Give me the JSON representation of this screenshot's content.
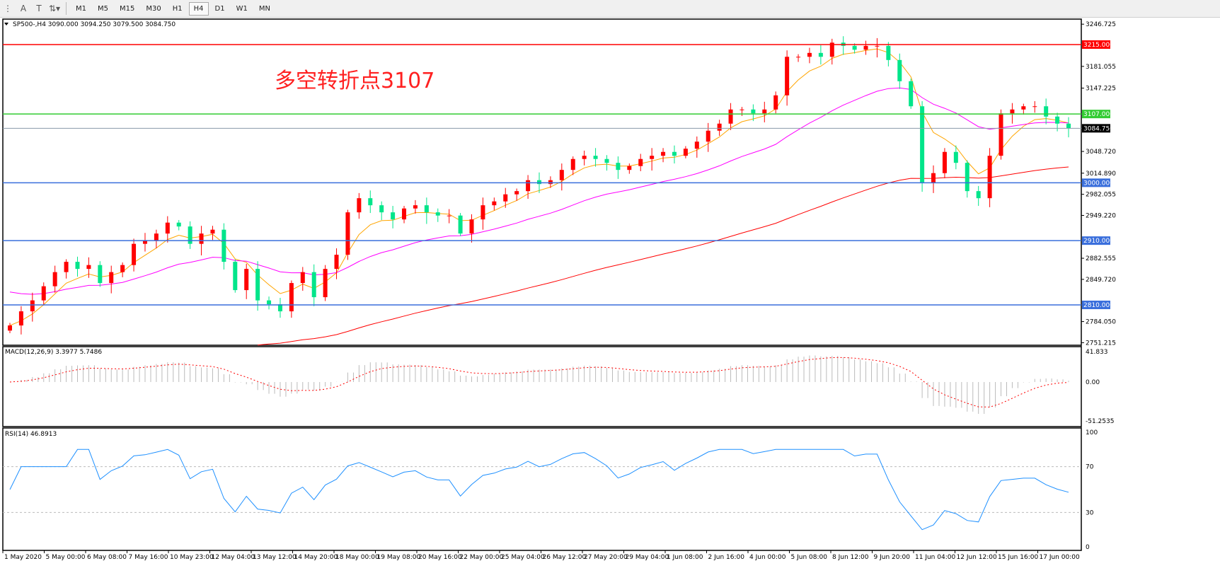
{
  "toolbar": {
    "icons": [
      "period-separator-icon",
      "text-icon",
      "text-label-icon",
      "arrows-icon"
    ],
    "timeframes": [
      "M1",
      "M5",
      "M15",
      "M30",
      "H1",
      "H4",
      "D1",
      "W1",
      "MN"
    ],
    "active_timeframe": "H4"
  },
  "chart": {
    "header": "SP500-,H4  3090.000 3094.250 3079.500 3084.750",
    "annotation": "多空转折点3107",
    "price_axis": [
      "3246.725",
      "3181.055",
      "3147.225",
      "3048.720",
      "3014.890",
      "2982.055",
      "2949.220",
      "2882.555",
      "2849.720",
      "2784.050",
      "2751.215"
    ],
    "levels": [
      {
        "label": "3215.000",
        "price": 3215,
        "color": "#ff0000"
      },
      {
        "label": "3107.000",
        "price": 3107,
        "color": "#33cc33"
      },
      {
        "label": "3000.000",
        "price": 3000,
        "color": "#3a6fdc"
      },
      {
        "label": "2910.000",
        "price": 2910,
        "color": "#3a6fdc"
      },
      {
        "label": "2810.000",
        "price": 2810,
        "color": "#3a6fdc"
      }
    ],
    "current_price": {
      "label": "3084.750",
      "price": 3084.75
    },
    "colors": {
      "bull": "#ff0000",
      "bear": "#00e58a",
      "ma_fast": "#ffa500",
      "ma_mid": "#ff00ff",
      "ma_slow": "#ff0000"
    },
    "closes": [
      2778,
      2800,
      2817,
      2839,
      2861,
      2877,
      2866,
      2872,
      2844,
      2861,
      2872,
      2905,
      2910,
      2921,
      2938,
      2932,
      2905,
      2921,
      2927,
      2877,
      2833,
      2866,
      2817,
      2811,
      2800,
      2844,
      2861,
      2822,
      2866,
      2888,
      2954,
      2976,
      2965,
      2954,
      2943,
      2960,
      2965,
      2954,
      2949,
      2949,
      2921,
      2943,
      2965,
      2971,
      2982,
      2987,
      3004,
      2998,
      3004,
      3020,
      3037,
      3042,
      3037,
      3031,
      3020,
      3026,
      3037,
      3042,
      3048,
      3042,
      3053,
      3064,
      3081,
      3092,
      3114,
      3114,
      3108,
      3114,
      3136,
      3196,
      3196,
      3202,
      3196,
      3218,
      3213,
      3207,
      3213,
      3213,
      3191,
      3158,
      3119,
      3000,
      3015,
      3048,
      3031,
      2987,
      2976,
      3042,
      3108,
      3114,
      3119,
      3119,
      3103,
      3092,
      3084.75
    ]
  },
  "macd": {
    "header": "MACD(12,26,9) 3.3977 5.7486",
    "axis": [
      "41.833",
      "0.00",
      "-51.2535"
    ]
  },
  "rsi": {
    "header": "RSI(14) 46.8913",
    "axis": [
      "100",
      "70",
      "30",
      "0"
    ]
  },
  "time_axis": [
    "1 May 2020",
    "5 May 00:00",
    "6 May 08:00",
    "7 May 16:00",
    "10 May 23:00",
    "12 May 04:00",
    "13 May 12:00",
    "14 May 20:00",
    "18 May 00:00",
    "19 May 08:00",
    "20 May 16:00",
    "22 May 00:00",
    "25 May 04:00",
    "26 May 12:00",
    "27 May 20:00",
    "29 May 04:00",
    "1 Jun 08:00",
    "2 Jun 16:00",
    "4 Jun 00:00",
    "5 Jun 08:00",
    "8 Jun 12:00",
    "9 Jun 20:00",
    "11 Jun 04:00",
    "12 Jun 12:00",
    "15 Jun 16:00",
    "17 Jun 00:00"
  ]
}
